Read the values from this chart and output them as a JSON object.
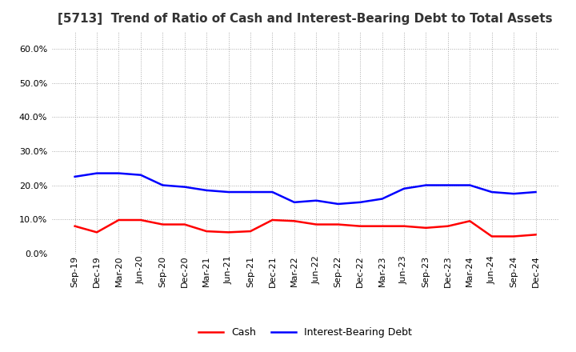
{
  "title": "[5713]  Trend of Ratio of Cash and Interest-Bearing Debt to Total Assets",
  "x_labels": [
    "Sep-19",
    "Dec-19",
    "Mar-20",
    "Jun-20",
    "Sep-20",
    "Dec-20",
    "Mar-21",
    "Jun-21",
    "Sep-21",
    "Dec-21",
    "Mar-22",
    "Jun-22",
    "Sep-22",
    "Dec-22",
    "Mar-23",
    "Jun-23",
    "Sep-23",
    "Dec-23",
    "Mar-24",
    "Jun-24",
    "Sep-24",
    "Dec-24"
  ],
  "cash": [
    8.0,
    6.2,
    9.8,
    9.8,
    8.5,
    8.5,
    6.5,
    6.2,
    6.5,
    9.8,
    9.5,
    8.5,
    8.5,
    8.0,
    8.0,
    8.0,
    7.5,
    8.0,
    9.5,
    5.0,
    5.0,
    5.5
  ],
  "ibd": [
    22.5,
    23.5,
    23.5,
    23.0,
    20.0,
    19.5,
    18.5,
    18.0,
    18.0,
    18.0,
    15.0,
    15.5,
    14.5,
    15.0,
    16.0,
    19.0,
    20.0,
    20.0,
    20.0,
    18.0,
    17.5,
    18.0
  ],
  "cash_color": "#ff0000",
  "ibd_color": "#0000ff",
  "ylim": [
    0,
    65
  ],
  "yticks": [
    0,
    10,
    20,
    30,
    40,
    50,
    60
  ],
  "background_color": "#ffffff",
  "plot_bg_color": "#ffffff",
  "grid_color": "#aaaaaa",
  "title_color": "#333333",
  "title_fontsize": 11,
  "tick_fontsize": 8,
  "legend_fontsize": 9
}
